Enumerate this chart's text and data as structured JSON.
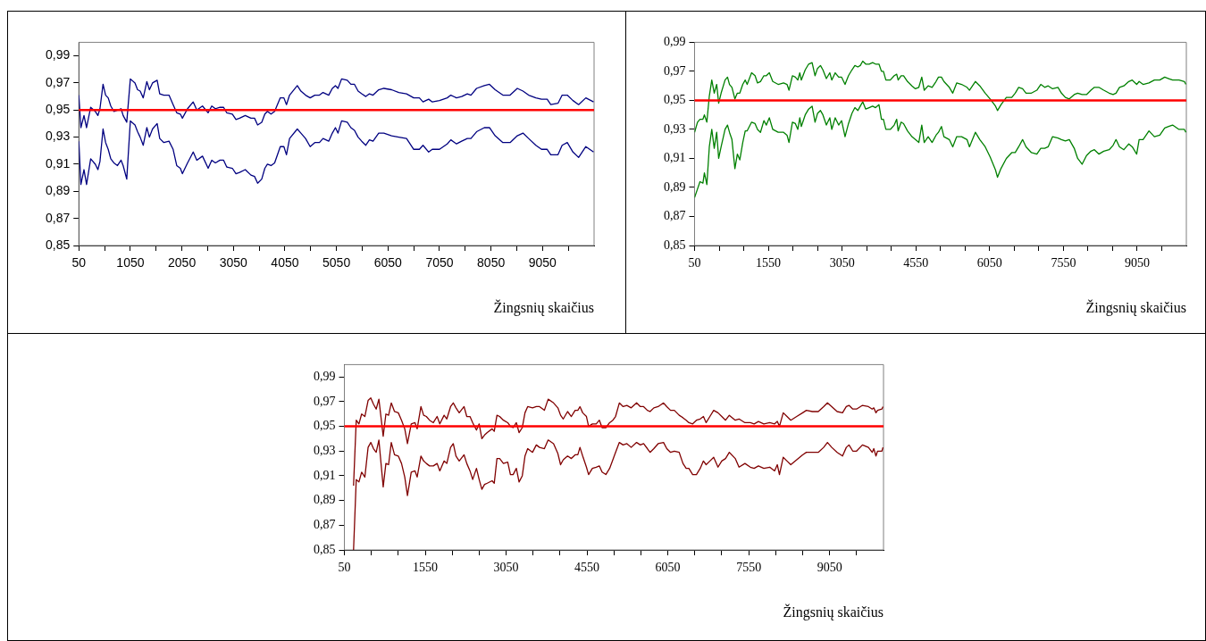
{
  "chart_data": [
    {
      "type": "line",
      "xlabel": "Žingsnių skaičius",
      "x": [
        50,
        90,
        150,
        200,
        280,
        370,
        420,
        460,
        520,
        570,
        620,
        670,
        730,
        800,
        870,
        910,
        980,
        1050,
        1140,
        1190,
        1240,
        1300,
        1370,
        1420,
        1480,
        1570,
        1620,
        1700,
        1800,
        1880,
        1950,
        2020,
        2060,
        2160,
        2270,
        2340,
        2450,
        2560,
        2630,
        2700,
        2790,
        2860,
        2920,
        3030,
        3100,
        3170,
        3280,
        3390,
        3460,
        3520,
        3600,
        3660,
        3710,
        3780,
        3850,
        3960,
        4030,
        4080,
        4140,
        4290,
        4360,
        4450,
        4540,
        4630,
        4720,
        4790,
        4900,
        4970,
        5030,
        5080,
        5150,
        5260,
        5330,
        5400,
        5470,
        5540,
        5620,
        5690,
        5760,
        5870,
        5970,
        6120,
        6260,
        6410,
        6550,
        6660,
        6730,
        6840,
        6910,
        7050,
        7200,
        7270,
        7380,
        7480,
        7590,
        7660,
        7770,
        7920,
        8020,
        8130,
        8280,
        8420,
        8560,
        8670,
        8780,
        8920,
        9030,
        9140,
        9210,
        9350,
        9430,
        9530,
        9640,
        9750,
        9890,
        10040
      ],
      "series": [
        {
          "color": "#000080",
          "values": [
            0.961,
            0.937,
            0.946,
            0.937,
            0.952,
            0.949,
            0.946,
            0.951,
            0.969,
            0.961,
            0.959,
            0.953,
            0.949,
            0.95,
            0.951,
            0.946,
            0.941,
            0.973,
            0.97,
            0.965,
            0.964,
            0.959,
            0.971,
            0.965,
            0.97,
            0.972,
            0.962,
            0.961,
            0.961,
            0.954,
            0.948,
            0.947,
            0.944,
            0.951,
            0.956,
            0.95,
            0.953,
            0.948,
            0.953,
            0.951,
            0.952,
            0.952,
            0.948,
            0.947,
            0.943,
            0.944,
            0.946,
            0.944,
            0.944,
            0.939,
            0.941,
            0.947,
            0.949,
            0.947,
            0.949,
            0.959,
            0.959,
            0.954,
            0.961,
            0.968,
            0.964,
            0.961,
            0.959,
            0.961,
            0.961,
            0.963,
            0.961,
            0.966,
            0.968,
            0.966,
            0.973,
            0.972,
            0.969,
            0.969,
            0.964,
            0.962,
            0.96,
            0.962,
            0.961,
            0.965,
            0.966,
            0.965,
            0.963,
            0.962,
            0.959,
            0.959,
            0.956,
            0.958,
            0.956,
            0.957,
            0.959,
            0.961,
            0.959,
            0.96,
            0.962,
            0.961,
            0.966,
            0.968,
            0.969,
            0.965,
            0.961,
            0.961,
            0.966,
            0.964,
            0.961,
            0.959,
            0.958,
            0.958,
            0.954,
            0.955,
            0.961,
            0.961,
            0.957,
            0.954,
            0.959,
            0.956
          ]
        },
        {
          "color": "#000080",
          "values": [
            0.927,
            0.895,
            0.906,
            0.895,
            0.914,
            0.91,
            0.906,
            0.912,
            0.936,
            0.926,
            0.921,
            0.914,
            0.911,
            0.909,
            0.913,
            0.909,
            0.899,
            0.942,
            0.939,
            0.934,
            0.93,
            0.924,
            0.937,
            0.93,
            0.936,
            0.94,
            0.929,
            0.926,
            0.927,
            0.921,
            0.909,
            0.907,
            0.903,
            0.911,
            0.919,
            0.913,
            0.916,
            0.907,
            0.913,
            0.911,
            0.913,
            0.913,
            0.908,
            0.907,
            0.903,
            0.904,
            0.906,
            0.902,
            0.901,
            0.896,
            0.899,
            0.907,
            0.91,
            0.909,
            0.911,
            0.923,
            0.923,
            0.917,
            0.929,
            0.936,
            0.933,
            0.929,
            0.923,
            0.926,
            0.926,
            0.929,
            0.927,
            0.933,
            0.937,
            0.933,
            0.942,
            0.941,
            0.937,
            0.935,
            0.93,
            0.927,
            0.924,
            0.928,
            0.927,
            0.933,
            0.933,
            0.931,
            0.93,
            0.929,
            0.921,
            0.921,
            0.924,
            0.919,
            0.921,
            0.921,
            0.925,
            0.928,
            0.925,
            0.927,
            0.929,
            0.929,
            0.934,
            0.937,
            0.937,
            0.931,
            0.926,
            0.926,
            0.931,
            0.933,
            0.929,
            0.924,
            0.921,
            0.921,
            0.917,
            0.917,
            0.924,
            0.926,
            0.919,
            0.915,
            0.923,
            0.919
          ]
        }
      ],
      "xlim": [
        50,
        10050
      ],
      "xticks": [
        50,
        {
          "value": 550,
          "label": null
        },
        1050,
        {
          "value": 1550,
          "label": null
        },
        2050,
        {
          "value": 2550,
          "label": null
        },
        3050,
        {
          "value": 3550,
          "label": null
        },
        4050,
        {
          "value": 4550,
          "label": null
        },
        5050,
        {
          "value": 5550,
          "label": null
        },
        6050,
        {
          "value": 6550,
          "label": null
        },
        7050,
        {
          "value": 7550,
          "label": null
        },
        8050,
        {
          "value": 8550,
          "label": null
        },
        9050,
        {
          "value": 9550,
          "label": null
        }
      ],
      "ylim": [
        0.85,
        1.0
      ],
      "yticks": [
        {
          "value": 0.85,
          "label": "0,85"
        },
        {
          "value": 0.87,
          "label": "0,87"
        },
        {
          "value": 0.89,
          "label": "0,89"
        },
        {
          "value": 0.91,
          "label": "0,91"
        },
        {
          "value": 0.93,
          "label": "0,93"
        },
        {
          "value": 0.95,
          "label": "0,95"
        },
        {
          "value": 0.97,
          "label": "0,97"
        },
        {
          "value": 0.99,
          "label": "0,99"
        }
      ],
      "ref_lines": [
        {
          "axis": "y",
          "value": 0.95,
          "color": "#ff0000"
        }
      ],
      "grid": false
    },
    {
      "type": "line",
      "xlabel": "Žingsnių skaičius",
      "x": [
        50,
        110,
        160,
        220,
        250,
        300,
        350,
        400,
        450,
        500,
        540,
        590,
        670,
        720,
        760,
        810,
        870,
        920,
        970,
        1030,
        1080,
        1120,
        1210,
        1280,
        1330,
        1390,
        1460,
        1510,
        1570,
        1640,
        1750,
        1860,
        1930,
        1970,
        2040,
        2100,
        2150,
        2190,
        2220,
        2300,
        2370,
        2440,
        2500,
        2550,
        2610,
        2660,
        2730,
        2800,
        2840,
        2910,
        2980,
        3040,
        3110,
        3180,
        3250,
        3310,
        3370,
        3420,
        3470,
        3530,
        3600,
        3670,
        3730,
        3800,
        3850,
        3890,
        3940,
        4030,
        4110,
        4160,
        4190,
        4250,
        4300,
        4380,
        4470,
        4540,
        4610,
        4670,
        4720,
        4800,
        4880,
        4960,
        5010,
        5070,
        5120,
        5230,
        5300,
        5380,
        5480,
        5590,
        5640,
        5760,
        5850,
        5960,
        6060,
        6170,
        6210,
        6280,
        6390,
        6500,
        6570,
        6640,
        6720,
        6790,
        6900,
        7010,
        7090,
        7170,
        7240,
        7330,
        7440,
        7510,
        7590,
        7670,
        7770,
        7840,
        7930,
        8020,
        8110,
        8180,
        8270,
        8370,
        8480,
        8560,
        8620,
        8690,
        8780,
        8880,
        8950,
        9040,
        9090,
        9170,
        9290,
        9400,
        9510,
        9610,
        9690,
        9770,
        9900,
        10010,
        10040
      ],
      "series": [
        {
          "color": "#008000",
          "values": [
            0.928,
            0.935,
            0.937,
            0.937,
            0.94,
            0.935,
            0.953,
            0.964,
            0.955,
            0.961,
            0.948,
            0.955,
            0.964,
            0.966,
            0.961,
            0.959,
            0.951,
            0.955,
            0.955,
            0.961,
            0.964,
            0.961,
            0.969,
            0.967,
            0.962,
            0.963,
            0.967,
            0.967,
            0.969,
            0.963,
            0.961,
            0.962,
            0.961,
            0.957,
            0.967,
            0.966,
            0.964,
            0.969,
            0.964,
            0.971,
            0.975,
            0.976,
            0.967,
            0.972,
            0.974,
            0.971,
            0.965,
            0.969,
            0.964,
            0.969,
            0.966,
            0.966,
            0.961,
            0.967,
            0.971,
            0.974,
            0.973,
            0.974,
            0.977,
            0.975,
            0.975,
            0.976,
            0.975,
            0.975,
            0.97,
            0.97,
            0.964,
            0.964,
            0.967,
            0.968,
            0.964,
            0.967,
            0.967,
            0.963,
            0.96,
            0.958,
            0.959,
            0.966,
            0.957,
            0.96,
            0.959,
            0.963,
            0.966,
            0.966,
            0.963,
            0.959,
            0.955,
            0.962,
            0.961,
            0.959,
            0.957,
            0.963,
            0.96,
            0.955,
            0.951,
            0.946,
            0.943,
            0.947,
            0.952,
            0.952,
            0.955,
            0.959,
            0.958,
            0.955,
            0.955,
            0.957,
            0.961,
            0.959,
            0.96,
            0.958,
            0.959,
            0.955,
            0.952,
            0.951,
            0.954,
            0.955,
            0.954,
            0.954,
            0.957,
            0.959,
            0.959,
            0.957,
            0.955,
            0.954,
            0.955,
            0.959,
            0.96,
            0.963,
            0.964,
            0.961,
            0.963,
            0.961,
            0.962,
            0.964,
            0.964,
            0.966,
            0.965,
            0.964,
            0.964,
            0.963,
            0.961
          ]
        },
        {
          "color": "#008000",
          "values": [
            0.883,
            0.889,
            0.894,
            0.893,
            0.9,
            0.892,
            0.918,
            0.93,
            0.917,
            0.928,
            0.91,
            0.918,
            0.93,
            0.933,
            0.928,
            0.923,
            0.903,
            0.913,
            0.909,
            0.921,
            0.929,
            0.929,
            0.935,
            0.934,
            0.93,
            0.928,
            0.936,
            0.933,
            0.938,
            0.93,
            0.928,
            0.928,
            0.926,
            0.921,
            0.935,
            0.934,
            0.93,
            0.938,
            0.932,
            0.94,
            0.944,
            0.946,
            0.935,
            0.941,
            0.943,
            0.94,
            0.933,
            0.938,
            0.93,
            0.938,
            0.933,
            0.936,
            0.925,
            0.934,
            0.941,
            0.945,
            0.943,
            0.946,
            0.949,
            0.944,
            0.945,
            0.946,
            0.945,
            0.947,
            0.937,
            0.937,
            0.93,
            0.93,
            0.933,
            0.937,
            0.929,
            0.935,
            0.934,
            0.929,
            0.925,
            0.923,
            0.921,
            0.933,
            0.921,
            0.925,
            0.921,
            0.926,
            0.928,
            0.932,
            0.925,
            0.923,
            0.918,
            0.925,
            0.925,
            0.923,
            0.918,
            0.928,
            0.923,
            0.918,
            0.911,
            0.902,
            0.897,
            0.903,
            0.91,
            0.914,
            0.914,
            0.918,
            0.923,
            0.918,
            0.914,
            0.913,
            0.917,
            0.917,
            0.918,
            0.925,
            0.924,
            0.923,
            0.922,
            0.923,
            0.917,
            0.91,
            0.906,
            0.912,
            0.915,
            0.916,
            0.913,
            0.915,
            0.916,
            0.919,
            0.923,
            0.918,
            0.916,
            0.92,
            0.918,
            0.913,
            0.923,
            0.923,
            0.929,
            0.925,
            0.926,
            0.931,
            0.932,
            0.933,
            0.93,
            0.93,
            0.928
          ]
        }
      ],
      "xlim": [
        50,
        10050
      ],
      "xticks": [
        50,
        {
          "value": 550,
          "label": null
        },
        {
          "value": 1050,
          "label": null
        },
        1550,
        {
          "value": 2050,
          "label": null
        },
        {
          "value": 2550,
          "label": null
        },
        3050,
        {
          "value": 3550,
          "label": null
        },
        {
          "value": 4050,
          "label": null
        },
        4550,
        {
          "value": 5050,
          "label": null
        },
        {
          "value": 5550,
          "label": null
        },
        6050,
        {
          "value": 6550,
          "label": null
        },
        {
          "value": 7050,
          "label": null
        },
        7550,
        {
          "value": 8050,
          "label": null
        },
        {
          "value": 8550,
          "label": null
        },
        9050,
        {
          "value": 9550,
          "label": null
        }
      ],
      "ylim": [
        0.85,
        0.99
      ],
      "yticks": [
        {
          "value": 0.85,
          "label": "0,85"
        },
        {
          "value": 0.87,
          "label": "0,87"
        },
        {
          "value": 0.89,
          "label": "0,89"
        },
        {
          "value": 0.91,
          "label": "0,91"
        },
        {
          "value": 0.93,
          "label": "0,93"
        },
        {
          "value": 0.95,
          "label": "0,95"
        },
        {
          "value": 0.97,
          "label": "0,97"
        },
        {
          "value": 0.99,
          "label": "0,99"
        }
      ],
      "ref_lines": [
        {
          "axis": "y",
          "value": 0.95,
          "color": "#ff0000"
        }
      ],
      "grid": false
    },
    {
      "type": "line",
      "xlabel": "Žingsnių skaičius",
      "x": [
        220,
        270,
        320,
        370,
        430,
        490,
        540,
        590,
        640,
        690,
        770,
        820,
        870,
        920,
        980,
        1050,
        1110,
        1170,
        1220,
        1290,
        1360,
        1400,
        1470,
        1520,
        1570,
        1630,
        1700,
        1770,
        1820,
        1900,
        1950,
        2020,
        2070,
        2120,
        2180,
        2270,
        2320,
        2380,
        2430,
        2500,
        2550,
        2600,
        2650,
        2700,
        2790,
        2830,
        2880,
        2930,
        3000,
        3080,
        3130,
        3180,
        3240,
        3290,
        3350,
        3400,
        3450,
        3540,
        3610,
        3670,
        3760,
        3830,
        3930,
        4010,
        4060,
        4110,
        4190,
        4260,
        4330,
        4380,
        4420,
        4470,
        4540,
        4580,
        4650,
        4720,
        4780,
        4830,
        4900,
        4970,
        5030,
        5080,
        5150,
        5220,
        5290,
        5370,
        5470,
        5540,
        5600,
        5670,
        5720,
        5790,
        5870,
        5970,
        6030,
        6100,
        6170,
        6260,
        6330,
        6390,
        6440,
        6510,
        6580,
        6650,
        6710,
        6760,
        6830,
        6900,
        6980,
        7050,
        7120,
        7190,
        7300,
        7370,
        7480,
        7580,
        7650,
        7730,
        7830,
        7940,
        8030,
        8080,
        8120,
        8190,
        8260,
        8330,
        8440,
        8550,
        8620,
        8730,
        8840,
        8940,
        9010,
        9090,
        9190,
        9290,
        9360,
        9410,
        9480,
        9550,
        9660,
        9770,
        9840,
        9870,
        9910,
        9940,
        10020,
        10040
      ],
      "series": [
        {
          "color": "#800000",
          "values": [
            0.902,
            0.955,
            0.952,
            0.96,
            0.958,
            0.971,
            0.973,
            0.968,
            0.964,
            0.972,
            0.942,
            0.96,
            0.959,
            0.969,
            0.962,
            0.961,
            0.955,
            0.948,
            0.936,
            0.952,
            0.953,
            0.948,
            0.966,
            0.959,
            0.958,
            0.955,
            0.953,
            0.958,
            0.952,
            0.959,
            0.956,
            0.966,
            0.969,
            0.965,
            0.961,
            0.966,
            0.958,
            0.958,
            0.953,
            0.947,
            0.952,
            0.94,
            0.943,
            0.945,
            0.948,
            0.946,
            0.959,
            0.958,
            0.955,
            0.953,
            0.95,
            0.949,
            0.953,
            0.945,
            0.949,
            0.961,
            0.966,
            0.965,
            0.966,
            0.966,
            0.963,
            0.972,
            0.969,
            0.965,
            0.959,
            0.956,
            0.962,
            0.958,
            0.963,
            0.963,
            0.966,
            0.961,
            0.958,
            0.95,
            0.952,
            0.952,
            0.955,
            0.949,
            0.949,
            0.953,
            0.955,
            0.958,
            0.969,
            0.966,
            0.967,
            0.965,
            0.969,
            0.966,
            0.966,
            0.963,
            0.962,
            0.965,
            0.966,
            0.969,
            0.966,
            0.963,
            0.963,
            0.959,
            0.957,
            0.955,
            0.953,
            0.952,
            0.955,
            0.956,
            0.958,
            0.953,
            0.958,
            0.963,
            0.961,
            0.958,
            0.955,
            0.959,
            0.955,
            0.956,
            0.953,
            0.953,
            0.952,
            0.954,
            0.952,
            0.953,
            0.952,
            0.954,
            0.95,
            0.961,
            0.958,
            0.955,
            0.958,
            0.961,
            0.963,
            0.962,
            0.962,
            0.966,
            0.969,
            0.966,
            0.962,
            0.961,
            0.966,
            0.967,
            0.964,
            0.964,
            0.967,
            0.966,
            0.964,
            0.965,
            0.961,
            0.963,
            0.964,
            0.966
          ]
        },
        {
          "color": "#800000",
          "values": [
            0.85,
            0.907,
            0.905,
            0.913,
            0.909,
            0.933,
            0.937,
            0.932,
            0.929,
            0.939,
            0.901,
            0.92,
            0.919,
            0.937,
            0.927,
            0.926,
            0.92,
            0.909,
            0.894,
            0.913,
            0.914,
            0.909,
            0.926,
            0.922,
            0.92,
            0.918,
            0.918,
            0.92,
            0.914,
            0.922,
            0.92,
            0.933,
            0.936,
            0.926,
            0.922,
            0.927,
            0.92,
            0.914,
            0.907,
            0.916,
            0.907,
            0.899,
            0.903,
            0.904,
            0.906,
            0.904,
            0.924,
            0.924,
            0.92,
            0.921,
            0.911,
            0.911,
            0.916,
            0.905,
            0.91,
            0.926,
            0.932,
            0.929,
            0.935,
            0.933,
            0.932,
            0.939,
            0.936,
            0.928,
            0.919,
            0.923,
            0.926,
            0.924,
            0.927,
            0.927,
            0.933,
            0.926,
            0.917,
            0.911,
            0.916,
            0.917,
            0.918,
            0.913,
            0.911,
            0.916,
            0.923,
            0.929,
            0.937,
            0.935,
            0.936,
            0.933,
            0.937,
            0.935,
            0.936,
            0.932,
            0.929,
            0.932,
            0.936,
            0.937,
            0.932,
            0.929,
            0.93,
            0.929,
            0.92,
            0.916,
            0.916,
            0.911,
            0.911,
            0.916,
            0.922,
            0.919,
            0.922,
            0.925,
            0.917,
            0.922,
            0.924,
            0.929,
            0.924,
            0.917,
            0.92,
            0.917,
            0.916,
            0.918,
            0.916,
            0.917,
            0.914,
            0.919,
            0.911,
            0.925,
            0.922,
            0.919,
            0.923,
            0.927,
            0.929,
            0.929,
            0.929,
            0.933,
            0.937,
            0.933,
            0.929,
            0.926,
            0.933,
            0.935,
            0.93,
            0.93,
            0.935,
            0.933,
            0.929,
            0.932,
            0.926,
            0.93,
            0.93,
            0.933
          ]
        }
      ],
      "xlim": [
        50,
        10050
      ],
      "xticks": [
        50,
        {
          "value": 550,
          "label": null
        },
        {
          "value": 1050,
          "label": null
        },
        1550,
        {
          "value": 2050,
          "label": null
        },
        {
          "value": 2550,
          "label": null
        },
        3050,
        {
          "value": 3550,
          "label": null
        },
        {
          "value": 4050,
          "label": null
        },
        4550,
        {
          "value": 5050,
          "label": null
        },
        {
          "value": 5550,
          "label": null
        },
        6050,
        {
          "value": 6550,
          "label": null
        },
        {
          "value": 7050,
          "label": null
        },
        7550,
        {
          "value": 8050,
          "label": null
        },
        {
          "value": 8550,
          "label": null
        },
        9050,
        {
          "value": 9550,
          "label": null
        }
      ],
      "ylim": [
        0.85,
        1.0
      ],
      "yticks": [
        {
          "value": 0.85,
          "label": "0,85"
        },
        {
          "value": 0.87,
          "label": "0,87"
        },
        {
          "value": 0.89,
          "label": "0,89"
        },
        {
          "value": 0.91,
          "label": "0,91"
        },
        {
          "value": 0.93,
          "label": "0,93"
        },
        {
          "value": 0.95,
          "label": "0,95"
        },
        {
          "value": 0.97,
          "label": "0,97"
        },
        {
          "value": 0.99,
          "label": "0,99"
        }
      ],
      "ref_lines": [
        {
          "axis": "y",
          "value": 0.95,
          "color": "#ff0000"
        }
      ],
      "grid": false
    }
  ]
}
